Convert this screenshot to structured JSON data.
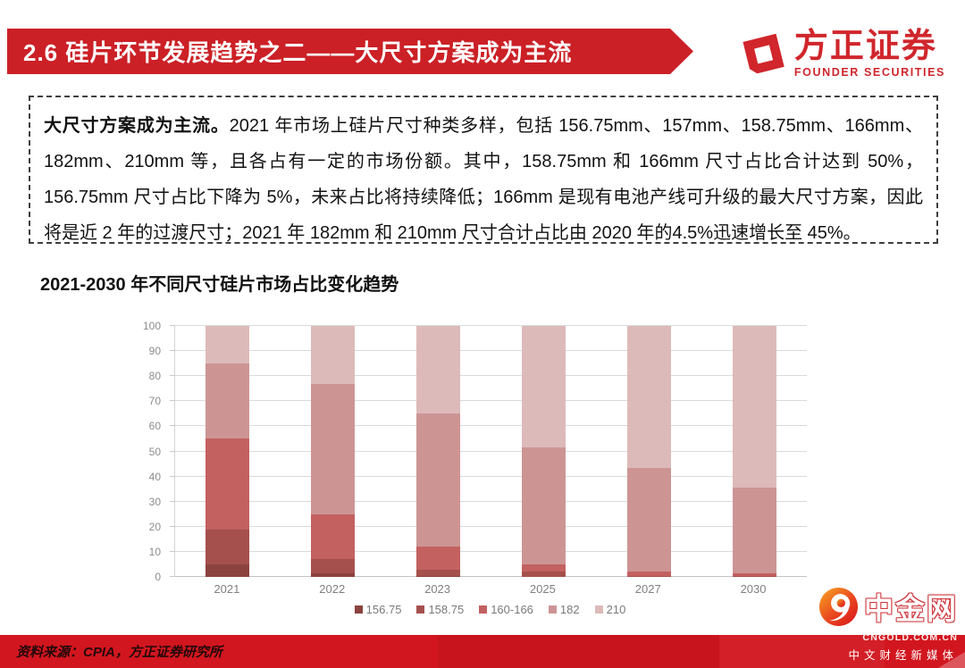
{
  "banner": {
    "title": "2.6 硅片环节发展趋势之二——大尺寸方案成为主流"
  },
  "brand": {
    "name_cn": "方正证券",
    "name_en": "FOUNDER SECURITIES"
  },
  "summary": {
    "lead": "大尺寸方案成为主流。",
    "body": "2021 年市场上硅片尺寸种类多样，包括 156.75mm、157mm、158.75mm、166mm、182mm、210mm 等，且各占有一定的市场份额。其中，158.75mm 和 166mm 尺寸占比合计达到 50%，156.75mm 尺寸占比下降为 5%，未来占比将持续降低；166mm 是现有电池产线可升级的最大尺寸方案，因此将是近 2 年的过渡尺寸；2021 年 182mm 和 210mm 尺寸合计占比由 2020 年的4.5%迅速增长至 45%。"
  },
  "chart_data": {
    "type": "bar",
    "stacked": true,
    "title": "2021-2030 年不同尺寸硅片市场占比变化趋势",
    "categories": [
      "2021",
      "2022",
      "2023",
      "2025",
      "2027",
      "2030"
    ],
    "series": [
      {
        "name": "156.75",
        "color": "#8c423f",
        "values": [
          5,
          1.5,
          0.5,
          0,
          0,
          0
        ]
      },
      {
        "name": "158.75",
        "color": "#a5504d",
        "values": [
          14,
          5.5,
          2.5,
          2,
          0.5,
          0.5
        ]
      },
      {
        "name": "160-166",
        "color": "#c26160",
        "values": [
          36,
          18,
          9,
          3,
          1.5,
          1
        ]
      },
      {
        "name": "182",
        "color": "#cc9594",
        "values": [
          30,
          52,
          53,
          46.5,
          41.5,
          34
        ]
      },
      {
        "name": "210",
        "color": "#dcbab9",
        "values": [
          15,
          23,
          35,
          48.5,
          56.5,
          64.5
        ]
      }
    ],
    "ylim": [
      0,
      100
    ],
    "yticks": [
      0,
      10,
      20,
      30,
      40,
      50,
      60,
      70,
      80,
      90,
      100
    ],
    "grid": true,
    "legend_position": "bottom"
  },
  "footer": {
    "source": "资料来源：CPIA，方正证券研究所"
  },
  "watermark": {
    "title": "中金网",
    "domain": "CNGOLD.COM.CN",
    "tagline": "中文财经新媒体"
  },
  "colors": {
    "banner_red": "#cb2026",
    "brand_red": "#d0262c",
    "footer_red": "#d2161f",
    "grid_gray": "#dadada",
    "axis_text_gray": "#8c8c8c"
  }
}
